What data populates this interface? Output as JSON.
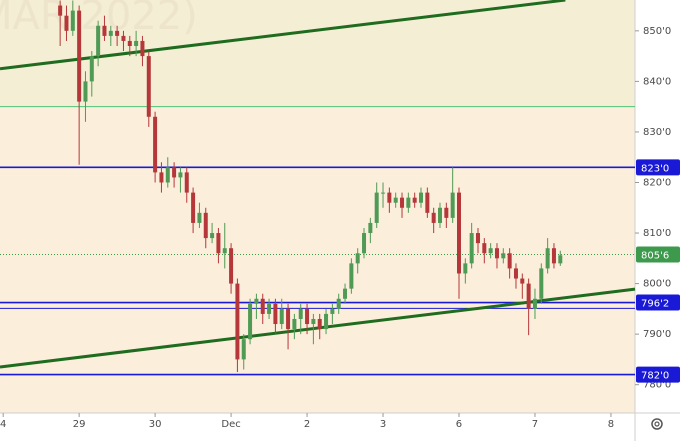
{
  "chart_data": {
    "type": "candlestick",
    "watermark": "MAR 2022)",
    "xlim": [
      -0.5,
      99.8
    ],
    "ylim": [
      774.4,
      856.1
    ],
    "xticks": [
      {
        "value": 0,
        "label": "4"
      },
      {
        "value": 12,
        "label": "29"
      },
      {
        "value": 24,
        "label": "30"
      },
      {
        "value": 36,
        "label": "Dec"
      },
      {
        "value": 48,
        "label": "2"
      },
      {
        "value": 60,
        "label": "3"
      },
      {
        "value": 72,
        "label": "6"
      },
      {
        "value": 84,
        "label": "7"
      },
      {
        "value": 96,
        "label": "8"
      }
    ],
    "yticks": [
      {
        "value": 780,
        "label": "780'0"
      },
      {
        "value": 790,
        "label": "790'0"
      },
      {
        "value": 800,
        "label": "800'0"
      },
      {
        "value": 810,
        "label": "810'0"
      },
      {
        "value": 820,
        "label": "820'0"
      },
      {
        "value": 830,
        "label": "830'0"
      },
      {
        "value": 840,
        "label": "840'0"
      },
      {
        "value": 850,
        "label": "850'0"
      }
    ],
    "up_color": "#4f9a55",
    "down_color": "#b5373a",
    "x": [
      9,
      10,
      11,
      12,
      13,
      14,
      15,
      16,
      17,
      18,
      19,
      20,
      21,
      22,
      23,
      24,
      25,
      26,
      27,
      28,
      29,
      30,
      31,
      32,
      33,
      34,
      35,
      36,
      37,
      38,
      39,
      40,
      41,
      42,
      43,
      44,
      45,
      46,
      47,
      48,
      49,
      50,
      51,
      52,
      53,
      54,
      55,
      56,
      57,
      58,
      59,
      60,
      61,
      62,
      63,
      64,
      65,
      66,
      67,
      68,
      69,
      70,
      71,
      72,
      73,
      74,
      75,
      76,
      77,
      78,
      79,
      80,
      81,
      82,
      83,
      84,
      85,
      86,
      87,
      88
    ],
    "open": [
      855,
      853,
      850,
      854,
      836,
      840,
      845,
      851,
      849,
      850,
      849,
      848,
      847,
      848,
      845,
      833,
      822,
      820,
      823,
      821,
      822,
      818,
      812,
      814,
      809,
      810,
      806,
      807,
      800,
      785,
      789,
      796,
      797,
      794,
      796,
      792,
      795,
      791,
      793,
      795,
      792,
      793,
      791,
      794,
      795,
      797,
      799,
      804,
      806,
      810,
      812,
      818,
      818,
      816,
      817,
      815,
      817,
      816,
      818,
      814,
      812,
      815,
      813,
      818,
      802,
      804,
      810,
      808,
      806,
      807,
      805,
      806,
      803,
      801,
      800,
      795,
      797,
      803,
      807,
      804
    ],
    "high": [
      856,
      855,
      856,
      855,
      842,
      846,
      852,
      853,
      851,
      851,
      850,
      849,
      850,
      849,
      846,
      834,
      824,
      825,
      824,
      823,
      823,
      819,
      816,
      815,
      812,
      811,
      812,
      808,
      801,
      790,
      797,
      798,
      798,
      797,
      797,
      797,
      796,
      794,
      796,
      796,
      794,
      794,
      795,
      796,
      798,
      800,
      805,
      807,
      811,
      813,
      820,
      820,
      819,
      818,
      818,
      818,
      818,
      819,
      819,
      815,
      816,
      816,
      823,
      819,
      805,
      812,
      811,
      809,
      808,
      808,
      807,
      807,
      804,
      802,
      801,
      799,
      804,
      809,
      808,
      806.5
    ],
    "low": [
      847,
      848,
      849,
      823.5,
      832,
      837,
      843,
      848,
      847,
      847,
      846,
      845,
      845,
      843,
      831,
      820,
      818,
      819,
      819,
      818,
      816,
      810,
      811,
      807,
      808,
      804,
      803,
      798,
      782.5,
      783,
      788,
      793,
      792,
      793,
      790,
      791,
      787,
      789,
      790,
      790,
      788,
      789,
      790,
      792,
      794,
      796,
      798,
      802,
      805,
      808,
      811,
      815,
      814,
      815,
      813,
      814,
      815,
      815,
      813,
      810,
      811,
      811,
      812,
      797,
      800,
      803,
      806,
      804,
      805,
      803,
      804,
      801,
      799,
      797,
      789.8,
      793,
      796,
      802,
      803,
      803.5
    ],
    "close": [
      853,
      850,
      854,
      836,
      840,
      845,
      851,
      849,
      850,
      849,
      848,
      847,
      848,
      845,
      833,
      822,
      820,
      823,
      821,
      822,
      818,
      812,
      814,
      809,
      810,
      806,
      807,
      800,
      785,
      789,
      796,
      797,
      794,
      796,
      792,
      795,
      791,
      793,
      795,
      792,
      793,
      791,
      794,
      795,
      797,
      799,
      804,
      806,
      810,
      812,
      818,
      818,
      816,
      817,
      815,
      817,
      816,
      818,
      814,
      812,
      815,
      813,
      818,
      802,
      804,
      810,
      808,
      806,
      807,
      805,
      806,
      803,
      801,
      800,
      795,
      797,
      803,
      807,
      804,
      805.6
    ],
    "levels": [
      {
        "value": 835,
        "color": "#4fc27a"
      },
      {
        "value": 823,
        "label": "823'0",
        "color": "#1a1ad6"
      },
      {
        "value": 796.25,
        "label": "796'2",
        "color": "#1a1ad6"
      },
      {
        "value": 795.1,
        "color": "#1a1ad6"
      },
      {
        "value": 782,
        "label": "782'0",
        "color": "#1a1ad6"
      },
      {
        "value": 805.75,
        "label": "805'6",
        "color": "#3d9a4c",
        "dotted": true
      }
    ],
    "trendlines": [
      {
        "x": [
          -0.5,
          88.8
        ],
        "y": [
          842.5,
          856.1
        ],
        "color": "#1f6b1f"
      },
      {
        "x": [
          -0.5,
          99.8
        ],
        "y": [
          783.5,
          798.9
        ],
        "color": "#1f6b1f"
      }
    ]
  }
}
